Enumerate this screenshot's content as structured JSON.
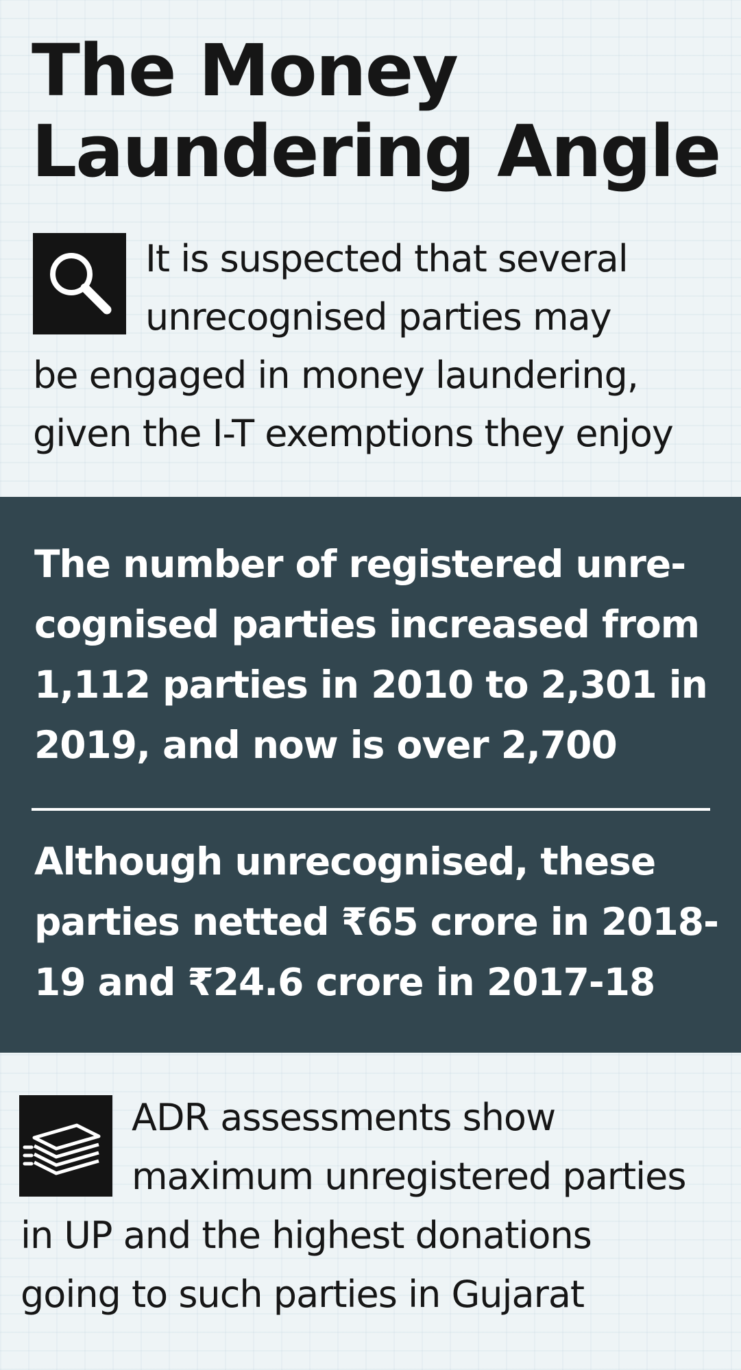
{
  "title": {
    "line1": "The Money",
    "line2": "Laundering Angle"
  },
  "intro": {
    "icon": "search-icon",
    "lines": [
      "It is suspected that several",
      "unrecognised parties may",
      "be engaged in money laundering,",
      "given the I-T exemptions they enjoy"
    ]
  },
  "facts": {
    "first": [
      "The number of registered unre-",
      "cognised parties increased from",
      "1,112 parties in 2010 to 2,301 in",
      "2019, and now is over 2,700"
    ],
    "second": [
      "Although unrecognised, these",
      "parties netted ₹65 crore in 2018-",
      "19 and ₹24.6 crore in 2017-18"
    ]
  },
  "outro": {
    "icon": "money-stack-icon",
    "lines": [
      "ADR assessments show",
      "maximum unregistered parties",
      "in UP and the highest donations",
      "going to such parties in Gujarat"
    ]
  },
  "colors": {
    "panel": "#32464f",
    "ink": "#161616",
    "background": "#eef4f6"
  }
}
